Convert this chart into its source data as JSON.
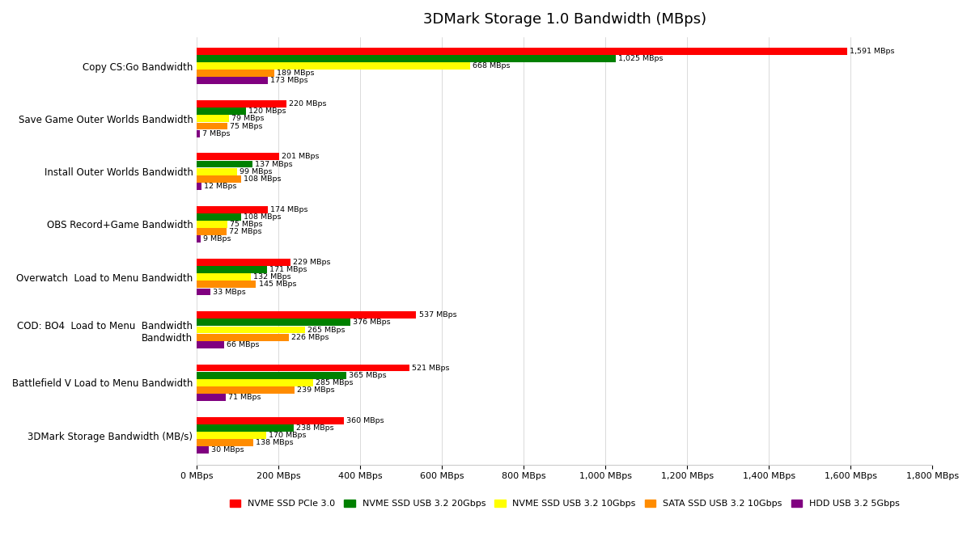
{
  "title": "3DMark Storage 1.0 Bandwidth (MBps)",
  "categories": [
    "Copy CS:Go Bandwidth",
    "Save Game Outer Worlds Bandwidth",
    "Install Outer Worlds Bandwidth",
    "OBS Record+Game Bandwidth",
    "Overwatch  Load to Menu Bandwidth",
    "COD: BO4  Load to Menu  Bandwidth\nBandwidth",
    "Battlefield V Load to Menu Bandwidth",
    "3DMark Storage Bandwidth (MB/s)"
  ],
  "series": [
    {
      "name": "NVME SSD PCIe 3.0",
      "color": "#FF0000",
      "values": [
        1591,
        220,
        201,
        174,
        229,
        537,
        521,
        360
      ]
    },
    {
      "name": "NVME SSD USB 3.2 20Gbps",
      "color": "#008000",
      "values": [
        1025,
        120,
        137,
        108,
        171,
        376,
        365,
        238
      ]
    },
    {
      "name": "NVME SSD USB 3.2 10Gbps",
      "color": "#FFFF00",
      "values": [
        668,
        79,
        99,
        75,
        132,
        265,
        285,
        170
      ]
    },
    {
      "name": "SATA SSD USB 3.2 10Gbps",
      "color": "#FF8C00",
      "values": [
        189,
        75,
        108,
        72,
        145,
        226,
        239,
        138
      ]
    },
    {
      "name": "HDD USB 3.2 5Gbps",
      "color": "#800080",
      "values": [
        173,
        7,
        12,
        9,
        33,
        66,
        71,
        30
      ]
    }
  ],
  "xlim": [
    0,
    1800
  ],
  "xticks": [
    0,
    200,
    400,
    600,
    800,
    1000,
    1200,
    1400,
    1600,
    1800
  ],
  "xtick_labels": [
    "0 MBps",
    "200 MBps",
    "400 MBps",
    "600 MBps",
    "800 MBps",
    "1,000 MBps",
    "1,200 MBps",
    "1,400 MBps",
    "1,600 MBps",
    "1,800 MBps"
  ],
  "background_color": "#FFFFFF",
  "bar_height": 0.14,
  "label_fontsize": 6.8,
  "ytick_fontsize": 8.5,
  "xtick_fontsize": 8.0,
  "title_fontsize": 13
}
